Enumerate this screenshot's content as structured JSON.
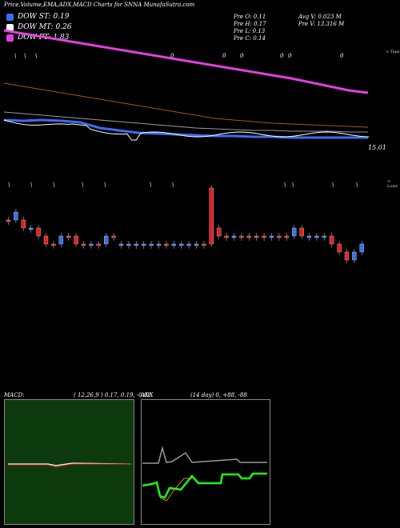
{
  "header": {
    "title": "Price,Volume,EMA,ADX,MACD Charts for SNNA MunafaSutra.com"
  },
  "legend": [
    {
      "label": "DOW ST: 0.19",
      "color": "#3a6df0"
    },
    {
      "label": "DOW MT: 0.26",
      "color": "#ffffff"
    },
    {
      "label": "DOW PT: 1.83",
      "color": "#e040e0"
    }
  ],
  "stats": {
    "prev_open": "Pre  O: 0.11",
    "prev_high": "Pre  H: 0.17",
    "prev_low": "Pre  L: 0.13",
    "prev_close": "Pre  C: 0.14",
    "avg_vol": "Avg V: 0.023  M",
    "prev_vol": "Pre   V: 13.316  M"
  },
  "side_labels": {
    "top": "<-Tops",
    "low": "<-Lows"
  },
  "price_label": "15.01",
  "chart_data": {
    "type": "line",
    "candles": [
      {
        "o": 0.15,
        "c": 0.15,
        "color": "red"
      },
      {
        "o": 0.15,
        "c": 0.16,
        "color": "blue"
      },
      {
        "o": 0.15,
        "c": 0.14,
        "color": "red"
      },
      {
        "o": 0.14,
        "c": 0.14,
        "color": "blue"
      },
      {
        "o": 0.14,
        "c": 0.13,
        "color": "red"
      },
      {
        "o": 0.13,
        "c": 0.12,
        "color": "red"
      },
      {
        "o": 0.12,
        "c": 0.12,
        "color": "red"
      },
      {
        "o": 0.12,
        "c": 0.13,
        "color": "blue"
      },
      {
        "o": 0.13,
        "c": 0.13,
        "color": "red"
      },
      {
        "o": 0.13,
        "c": 0.12,
        "color": "red"
      },
      {
        "o": 0.12,
        "c": 0.12,
        "color": "red"
      },
      {
        "o": 0.12,
        "c": 0.12,
        "color": "blue"
      },
      {
        "o": 0.12,
        "c": 0.12,
        "color": "red"
      },
      {
        "o": 0.12,
        "c": 0.13,
        "color": "blue"
      },
      {
        "o": 0.13,
        "c": 0.13,
        "color": "red"
      },
      {
        "o": 0.12,
        "c": 0.12,
        "color": "blue"
      },
      {
        "o": 0.12,
        "c": 0.12,
        "color": "blue"
      },
      {
        "o": 0.12,
        "c": 0.12,
        "color": "blue"
      },
      {
        "o": 0.12,
        "c": 0.12,
        "color": "blue"
      },
      {
        "o": 0.12,
        "c": 0.12,
        "color": "blue"
      },
      {
        "o": 0.12,
        "c": 0.12,
        "color": "blue"
      },
      {
        "o": 0.12,
        "c": 0.12,
        "color": "red"
      },
      {
        "o": 0.12,
        "c": 0.12,
        "color": "blue"
      },
      {
        "o": 0.12,
        "c": 0.12,
        "color": "blue"
      },
      {
        "o": 0.12,
        "c": 0.12,
        "color": "blue"
      },
      {
        "o": 0.12,
        "c": 0.12,
        "color": "blue"
      },
      {
        "o": 0.12,
        "c": 0.12,
        "color": "red"
      },
      {
        "o": 0.12,
        "c": 0.19,
        "color": "red"
      },
      {
        "o": 0.13,
        "c": 0.14,
        "color": "red"
      },
      {
        "o": 0.13,
        "c": 0.13,
        "color": "red"
      },
      {
        "o": 0.13,
        "c": 0.13,
        "color": "blue"
      },
      {
        "o": 0.13,
        "c": 0.13,
        "color": "red"
      },
      {
        "o": 0.13,
        "c": 0.13,
        "color": "red"
      },
      {
        "o": 0.13,
        "c": 0.13,
        "color": "red"
      },
      {
        "o": 0.13,
        "c": 0.13,
        "color": "red"
      },
      {
        "o": 0.13,
        "c": 0.13,
        "color": "blue"
      },
      {
        "o": 0.13,
        "c": 0.13,
        "color": "red"
      },
      {
        "o": 0.13,
        "c": 0.13,
        "color": "red"
      },
      {
        "o": 0.13,
        "c": 0.14,
        "color": "blue"
      },
      {
        "o": 0.14,
        "c": 0.13,
        "color": "red"
      },
      {
        "o": 0.13,
        "c": 0.13,
        "color": "blue"
      },
      {
        "o": 0.13,
        "c": 0.13,
        "color": "blue"
      },
      {
        "o": 0.13,
        "c": 0.13,
        "color": "blue"
      },
      {
        "o": 0.13,
        "c": 0.12,
        "color": "red"
      },
      {
        "o": 0.12,
        "c": 0.11,
        "color": "red"
      },
      {
        "o": 0.11,
        "c": 0.1,
        "color": "red"
      },
      {
        "o": 0.1,
        "c": 0.11,
        "color": "blue"
      },
      {
        "o": 0.11,
        "c": 0.12,
        "color": "blue"
      }
    ],
    "series": [
      {
        "values": [
          38,
          42,
          46,
          50,
          54,
          58,
          62,
          66,
          70,
          74,
          78,
          82,
          86,
          90,
          94,
          98,
          103,
          108,
          113,
          116
        ]
      },
      {
        "values": [
          104,
          108,
          112,
          116,
          120,
          124,
          128,
          132,
          136,
          140,
          144,
          148,
          150,
          152,
          154,
          155,
          156,
          157,
          158,
          159
        ]
      },
      {
        "values": [
          140,
          142,
          144,
          146,
          148,
          150,
          152,
          154,
          156,
          158,
          160,
          161,
          162,
          163,
          163,
          164,
          164,
          164,
          165,
          165
        ]
      },
      {
        "values": [
          150,
          151,
          150,
          151,
          153,
          160,
          163,
          166,
          167,
          168,
          169,
          170,
          170,
          171,
          171,
          172,
          172,
          172,
          172,
          172
        ]
      }
    ],
    "macd": {
      "title": "MACD:",
      "params": "( 12,26,9 ) 0.17,  0.19,  -0.02"
    },
    "adx": {
      "title": "ADX",
      "params": "(14  day) 0,  +88,  -88"
    }
  },
  "colors": {
    "blue": "#3a6df0",
    "red": "#e02020",
    "magenta": "#e040e0",
    "brown": "#a0581a",
    "white": "#ffffff",
    "green": "#14ff14",
    "grey": "#999999"
  }
}
